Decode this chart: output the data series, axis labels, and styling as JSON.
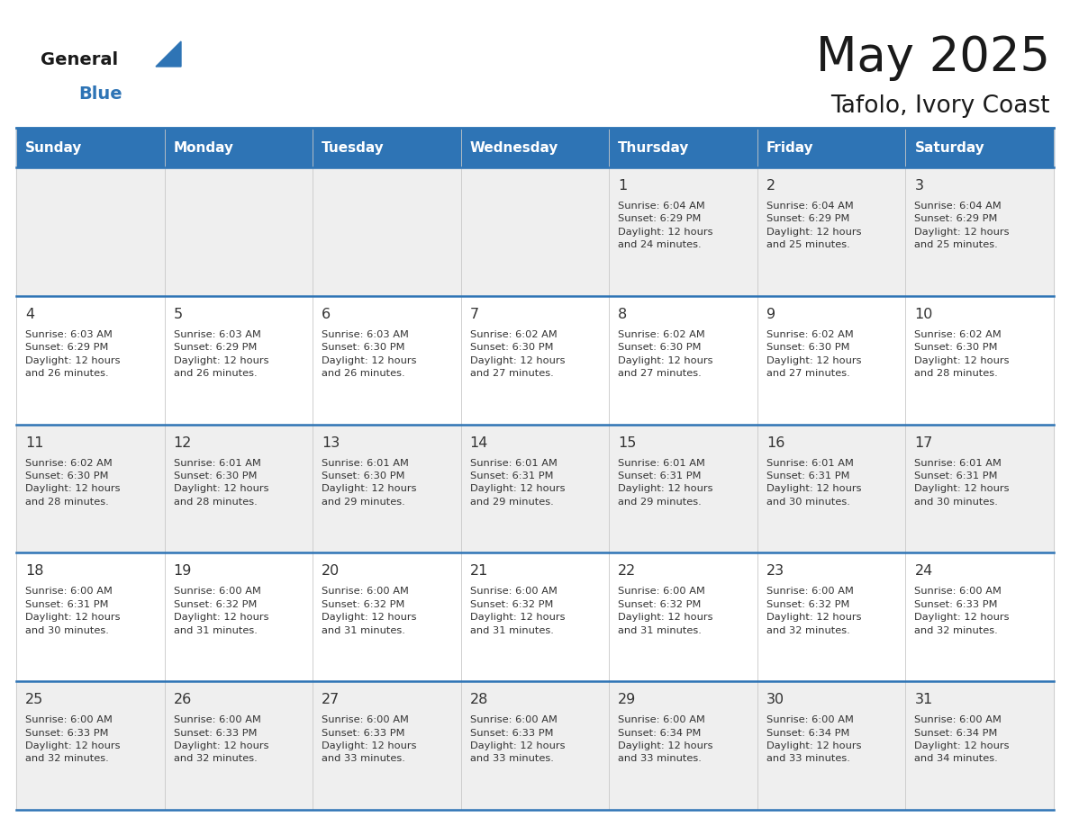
{
  "title": "May 2025",
  "subtitle": "Tafolo, Ivory Coast",
  "header_color": "#2E74B5",
  "header_text_color": "#FFFFFF",
  "background_color": "#FFFFFF",
  "alt_row_color": "#EFEFEF",
  "day_names": [
    "Sunday",
    "Monday",
    "Tuesday",
    "Wednesday",
    "Thursday",
    "Friday",
    "Saturday"
  ],
  "cell_text_color": "#333333",
  "day_number_color": "#333333",
  "header_line_color": "#2E74B5",
  "weeks": [
    [
      {
        "day": null,
        "info": null
      },
      {
        "day": null,
        "info": null
      },
      {
        "day": null,
        "info": null
      },
      {
        "day": null,
        "info": null
      },
      {
        "day": 1,
        "info": "Sunrise: 6:04 AM\nSunset: 6:29 PM\nDaylight: 12 hours\nand 24 minutes."
      },
      {
        "day": 2,
        "info": "Sunrise: 6:04 AM\nSunset: 6:29 PM\nDaylight: 12 hours\nand 25 minutes."
      },
      {
        "day": 3,
        "info": "Sunrise: 6:04 AM\nSunset: 6:29 PM\nDaylight: 12 hours\nand 25 minutes."
      }
    ],
    [
      {
        "day": 4,
        "info": "Sunrise: 6:03 AM\nSunset: 6:29 PM\nDaylight: 12 hours\nand 26 minutes."
      },
      {
        "day": 5,
        "info": "Sunrise: 6:03 AM\nSunset: 6:29 PM\nDaylight: 12 hours\nand 26 minutes."
      },
      {
        "day": 6,
        "info": "Sunrise: 6:03 AM\nSunset: 6:30 PM\nDaylight: 12 hours\nand 26 minutes."
      },
      {
        "day": 7,
        "info": "Sunrise: 6:02 AM\nSunset: 6:30 PM\nDaylight: 12 hours\nand 27 minutes."
      },
      {
        "day": 8,
        "info": "Sunrise: 6:02 AM\nSunset: 6:30 PM\nDaylight: 12 hours\nand 27 minutes."
      },
      {
        "day": 9,
        "info": "Sunrise: 6:02 AM\nSunset: 6:30 PM\nDaylight: 12 hours\nand 27 minutes."
      },
      {
        "day": 10,
        "info": "Sunrise: 6:02 AM\nSunset: 6:30 PM\nDaylight: 12 hours\nand 28 minutes."
      }
    ],
    [
      {
        "day": 11,
        "info": "Sunrise: 6:02 AM\nSunset: 6:30 PM\nDaylight: 12 hours\nand 28 minutes."
      },
      {
        "day": 12,
        "info": "Sunrise: 6:01 AM\nSunset: 6:30 PM\nDaylight: 12 hours\nand 28 minutes."
      },
      {
        "day": 13,
        "info": "Sunrise: 6:01 AM\nSunset: 6:30 PM\nDaylight: 12 hours\nand 29 minutes."
      },
      {
        "day": 14,
        "info": "Sunrise: 6:01 AM\nSunset: 6:31 PM\nDaylight: 12 hours\nand 29 minutes."
      },
      {
        "day": 15,
        "info": "Sunrise: 6:01 AM\nSunset: 6:31 PM\nDaylight: 12 hours\nand 29 minutes."
      },
      {
        "day": 16,
        "info": "Sunrise: 6:01 AM\nSunset: 6:31 PM\nDaylight: 12 hours\nand 30 minutes."
      },
      {
        "day": 17,
        "info": "Sunrise: 6:01 AM\nSunset: 6:31 PM\nDaylight: 12 hours\nand 30 minutes."
      }
    ],
    [
      {
        "day": 18,
        "info": "Sunrise: 6:00 AM\nSunset: 6:31 PM\nDaylight: 12 hours\nand 30 minutes."
      },
      {
        "day": 19,
        "info": "Sunrise: 6:00 AM\nSunset: 6:32 PM\nDaylight: 12 hours\nand 31 minutes."
      },
      {
        "day": 20,
        "info": "Sunrise: 6:00 AM\nSunset: 6:32 PM\nDaylight: 12 hours\nand 31 minutes."
      },
      {
        "day": 21,
        "info": "Sunrise: 6:00 AM\nSunset: 6:32 PM\nDaylight: 12 hours\nand 31 minutes."
      },
      {
        "day": 22,
        "info": "Sunrise: 6:00 AM\nSunset: 6:32 PM\nDaylight: 12 hours\nand 31 minutes."
      },
      {
        "day": 23,
        "info": "Sunrise: 6:00 AM\nSunset: 6:32 PM\nDaylight: 12 hours\nand 32 minutes."
      },
      {
        "day": 24,
        "info": "Sunrise: 6:00 AM\nSunset: 6:33 PM\nDaylight: 12 hours\nand 32 minutes."
      }
    ],
    [
      {
        "day": 25,
        "info": "Sunrise: 6:00 AM\nSunset: 6:33 PM\nDaylight: 12 hours\nand 32 minutes."
      },
      {
        "day": 26,
        "info": "Sunrise: 6:00 AM\nSunset: 6:33 PM\nDaylight: 12 hours\nand 32 minutes."
      },
      {
        "day": 27,
        "info": "Sunrise: 6:00 AM\nSunset: 6:33 PM\nDaylight: 12 hours\nand 33 minutes."
      },
      {
        "day": 28,
        "info": "Sunrise: 6:00 AM\nSunset: 6:33 PM\nDaylight: 12 hours\nand 33 minutes."
      },
      {
        "day": 29,
        "info": "Sunrise: 6:00 AM\nSunset: 6:34 PM\nDaylight: 12 hours\nand 33 minutes."
      },
      {
        "day": 30,
        "info": "Sunrise: 6:00 AM\nSunset: 6:34 PM\nDaylight: 12 hours\nand 33 minutes."
      },
      {
        "day": 31,
        "info": "Sunrise: 6:00 AM\nSunset: 6:34 PM\nDaylight: 12 hours\nand 34 minutes."
      }
    ]
  ],
  "logo_general_color": "#1A1A1A",
  "logo_blue_color": "#2E74B5",
  "logo_triangle_color": "#2E74B5",
  "figwidth": 11.88,
  "figheight": 9.18,
  "dpi": 100
}
